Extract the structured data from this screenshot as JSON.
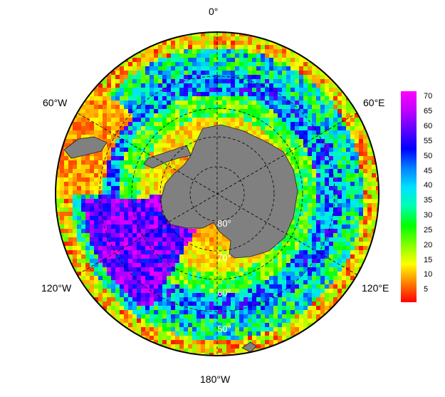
{
  "map": {
    "projection": "south-polar-stereographic",
    "longitude_labels": {
      "top": "0°",
      "upper_left": "60°W",
      "upper_right": "60°E",
      "lower_left": "120°W",
      "lower_right": "120°E",
      "bottom": "180°W"
    },
    "latitude_labels": [
      "80°",
      "70°",
      "60°",
      "50°"
    ],
    "colors": {
      "land": "#808080",
      "frame": "#000000",
      "graticule": "#000000"
    }
  },
  "colorbar": {
    "ticks": [
      "70",
      "65",
      "60",
      "55",
      "50",
      "45",
      "40",
      "35",
      "30",
      "25",
      "20",
      "15",
      "10",
      "5"
    ],
    "range": [
      1,
      72
    ],
    "colormap": [
      "#ff0000",
      "#ff8000",
      "#ffff00",
      "#80ff00",
      "#00ff00",
      "#00ffb0",
      "#00e0ff",
      "#0080ff",
      "#0000ff",
      "#6000ff",
      "#c000ff",
      "#ff00ff"
    ]
  }
}
